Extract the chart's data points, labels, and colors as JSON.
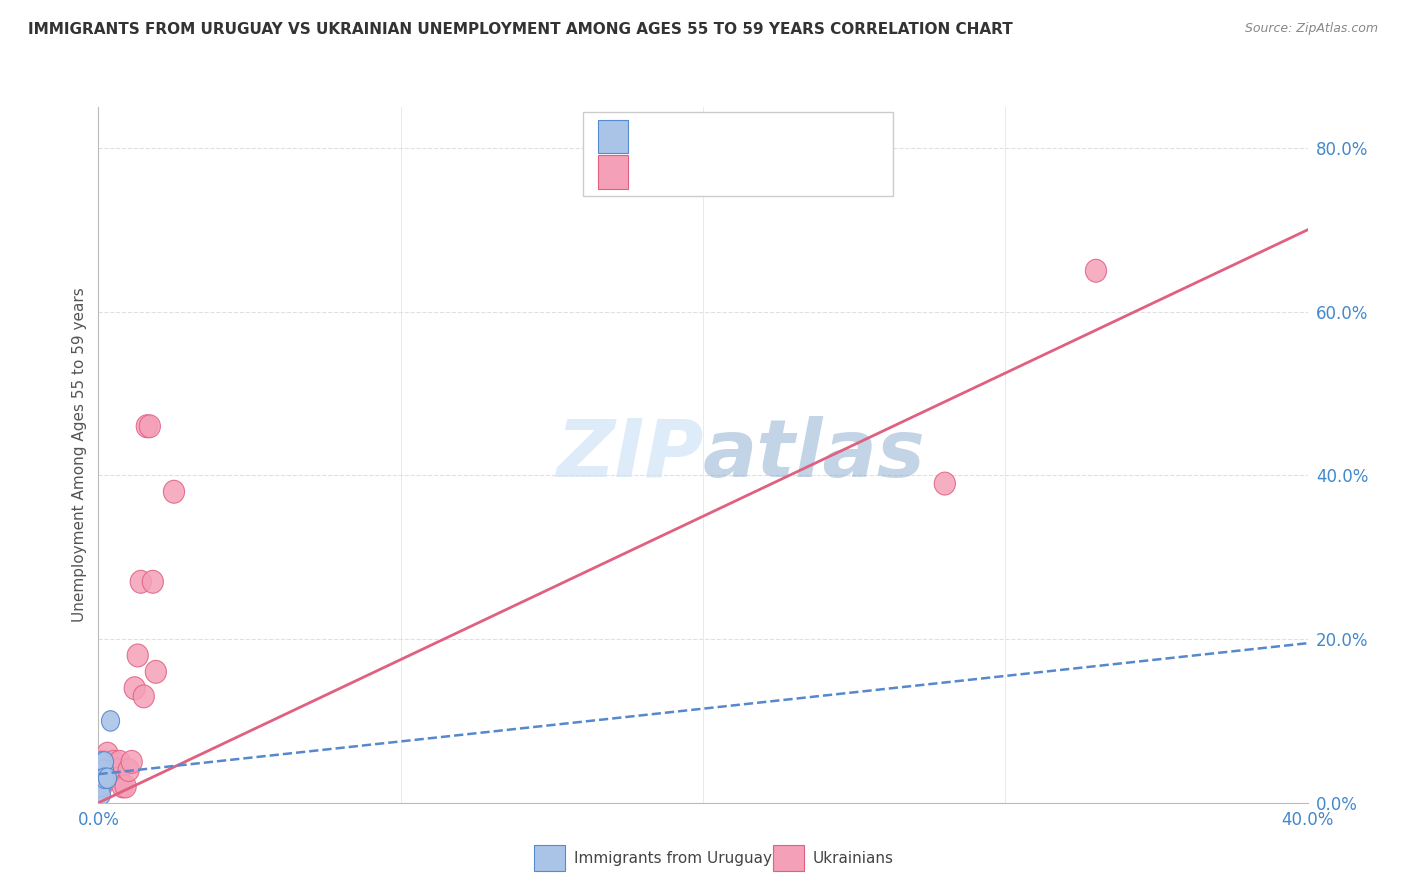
{
  "title": "IMMIGRANTS FROM URUGUAY VS UKRAINIAN UNEMPLOYMENT AMONG AGES 55 TO 59 YEARS CORRELATION CHART",
  "source": "Source: ZipAtlas.com",
  "ylabel": "Unemployment Among Ages 55 to 59 years",
  "legend_bottom1": "Immigrants from Uruguay",
  "legend_bottom2": "Ukrainians",
  "uruguay_x": [
    0.0,
    0.001,
    0.001,
    0.001,
    0.001,
    0.001,
    0.002,
    0.002,
    0.002,
    0.003,
    0.004
  ],
  "uruguay_y": [
    0.02,
    0.04,
    0.05,
    0.03,
    0.02,
    0.01,
    0.04,
    0.05,
    0.03,
    0.03,
    0.1
  ],
  "ukraine_x": [
    0.0,
    0.001,
    0.001,
    0.002,
    0.002,
    0.003,
    0.003,
    0.004,
    0.005,
    0.005,
    0.006,
    0.007,
    0.007,
    0.008,
    0.009,
    0.01,
    0.011,
    0.012,
    0.013,
    0.014,
    0.015,
    0.016,
    0.017,
    0.018,
    0.019,
    0.025,
    0.28,
    0.33
  ],
  "ukraine_y": [
    0.02,
    0.02,
    0.05,
    0.03,
    0.05,
    0.04,
    0.06,
    0.04,
    0.04,
    0.05,
    0.04,
    0.03,
    0.05,
    0.02,
    0.02,
    0.04,
    0.05,
    0.14,
    0.18,
    0.27,
    0.13,
    0.46,
    0.46,
    0.27,
    0.16,
    0.38,
    0.39,
    0.65
  ],
  "uruguay_color": "#aac4e8",
  "ukraine_color": "#f4a0b8",
  "uruguay_line_color": "#5588cc",
  "ukraine_line_color": "#e06080",
  "background_color": "#ffffff",
  "grid_color": "#e0e0e0",
  "title_color": "#333333",
  "axis_label_color": "#4488cc",
  "watermark_color_zip": "#c8d8f0",
  "watermark_color_atlas": "#88aacc",
  "xlim": [
    0.0,
    0.4
  ],
  "ylim": [
    0.0,
    0.85
  ],
  "yticks": [
    0.0,
    0.2,
    0.4,
    0.6,
    0.8
  ],
  "xticks": [
    0.0,
    0.1,
    0.2,
    0.3,
    0.4
  ],
  "ukr_line_x0": 0.0,
  "ukr_line_y0": 0.0,
  "ukr_line_x1": 0.4,
  "ukr_line_y1": 0.7,
  "ury_line_x0": 0.0,
  "ury_line_y0": 0.035,
  "ury_line_x1": 0.4,
  "ury_line_y1": 0.195
}
